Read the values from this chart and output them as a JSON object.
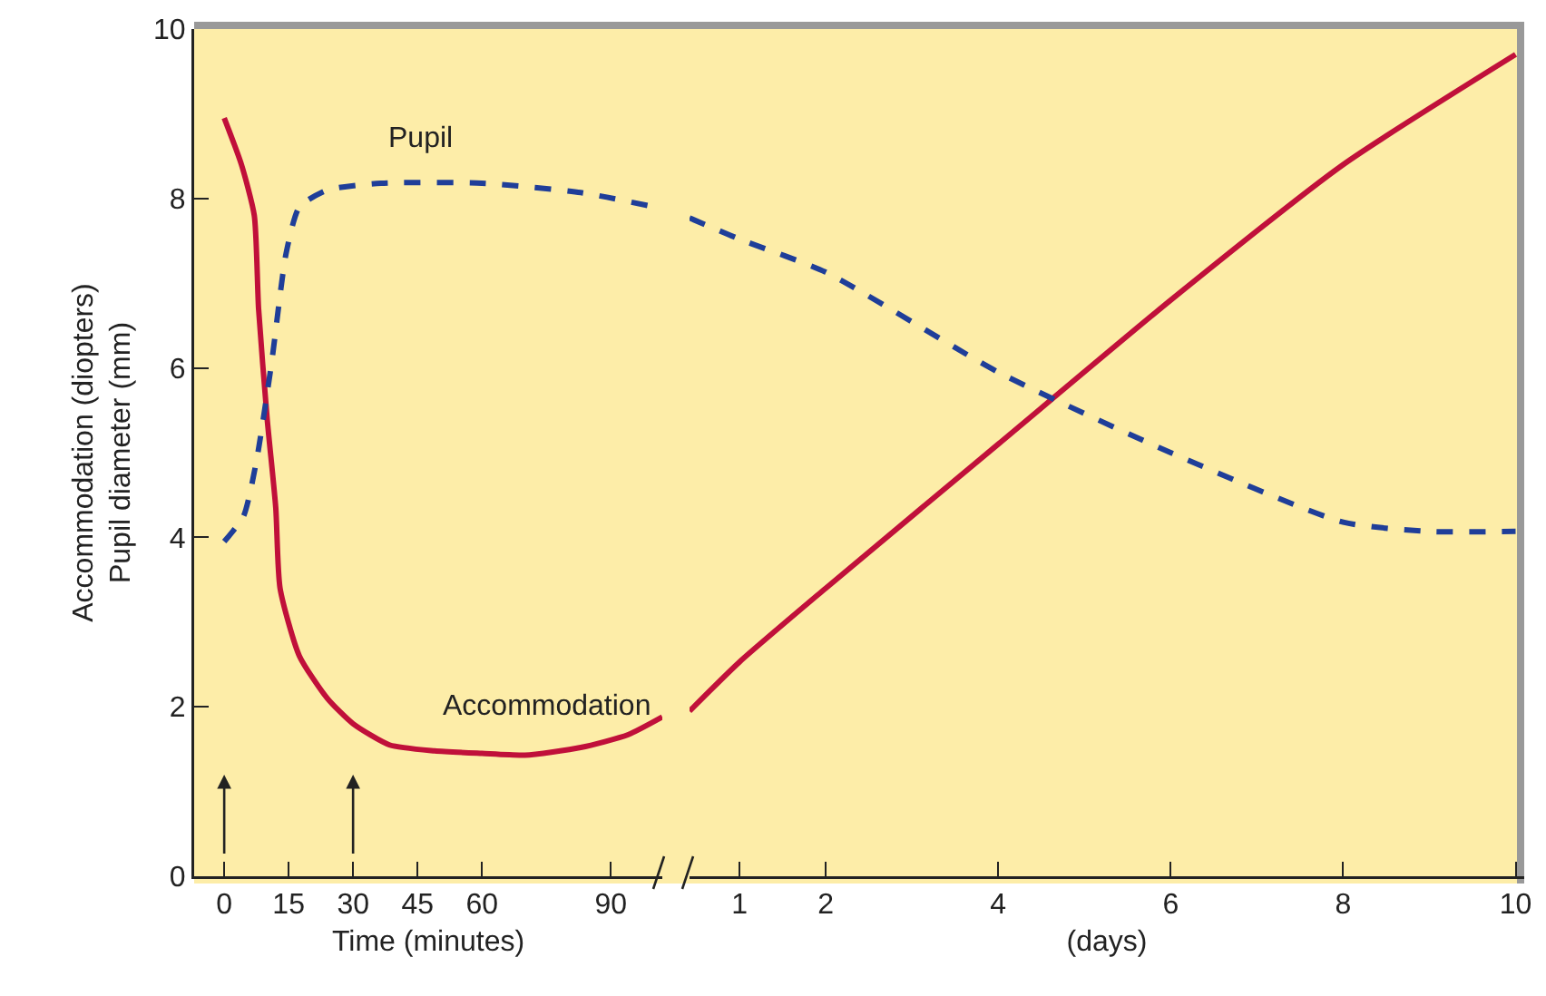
{
  "chart_data": [
    {
      "type": "line",
      "xlabel": "Time (minutes)",
      "ylabel": "Accommodation (diopters)\nPupil diameter (mm)",
      "xlim": [
        -7,
        102
      ],
      "ylim": [
        0,
        10
      ],
      "xticks": [
        0,
        15,
        30,
        45,
        60,
        90
      ],
      "yticks": [
        0,
        2,
        4,
        6,
        8,
        10
      ],
      "grid": false,
      "series": [
        {
          "name": "Accommodation",
          "color": "#c0103a",
          "line_style": "solid",
          "x": [
            0,
            4,
            7,
            8,
            10,
            12,
            13,
            17.5,
            24,
            30,
            38.5,
            49,
            60,
            70,
            83,
            94,
            102
          ],
          "values": [
            8.95,
            8.4,
            7.8,
            6.7,
            5.4,
            4.35,
            3.4,
            2.6,
            2.1,
            1.8,
            1.55,
            1.48,
            1.45,
            1.43,
            1.52,
            1.67,
            1.88
          ]
        },
        {
          "name": "Pupil",
          "color": "#1f3e99",
          "line_style": "dashed",
          "x": [
            0,
            4.5,
            7.5,
            11,
            14.4,
            17.5,
            24,
            36.5,
            60,
            83,
            102
          ],
          "values": [
            3.95,
            4.25,
            4.9,
            6.05,
            7.35,
            7.9,
            8.1,
            8.18,
            8.18,
            8.07,
            7.88
          ]
        }
      ]
    },
    {
      "type": "line",
      "xlabel": "(days)",
      "xlim": [
        0.42,
        10.1
      ],
      "ylim": [
        0,
        10
      ],
      "xticks": [
        1,
        2,
        4,
        6,
        8,
        10
      ],
      "tick_labels": "x",
      "grid": false,
      "series": [
        {
          "color": "#c0103a",
          "line_style": "solid",
          "x": [
            0.42,
            1,
            2,
            4,
            6,
            8,
            10
          ],
          "values": [
            1.95,
            2.53,
            3.4,
            5.1,
            6.8,
            8.4,
            9.7
          ]
        },
        {
          "color": "#1f3e99",
          "line_style": "dashed",
          "x": [
            0.42,
            1,
            2,
            4,
            6,
            8,
            9,
            10
          ],
          "values": [
            7.77,
            7.52,
            7.13,
            5.95,
            5.0,
            4.18,
            4.07,
            4.07
          ]
        }
      ]
    }
  ]
}
